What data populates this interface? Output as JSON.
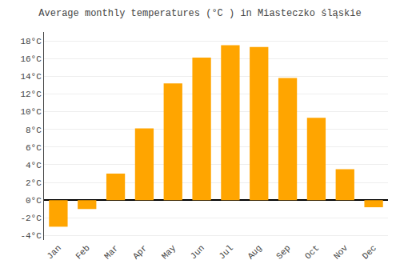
{
  "chart_data": {
    "type": "bar",
    "title": "Average monthly temperatures (°C ) in Miasteczko śląskie",
    "categories": [
      "Jan",
      "Feb",
      "Mar",
      "Apr",
      "May",
      "Jun",
      "Jul",
      "Aug",
      "Sep",
      "Oct",
      "Nov",
      "Dec"
    ],
    "values": [
      -3.0,
      -1.0,
      3.0,
      8.1,
      13.2,
      16.1,
      17.5,
      17.3,
      13.8,
      9.3,
      3.5,
      -0.8
    ],
    "color": "#FFA500",
    "ylim": [
      -4.5,
      19
    ],
    "yticks": [
      {
        "value": -4,
        "label": "-4°C"
      },
      {
        "value": -2,
        "label": "-2°C"
      },
      {
        "value": 0,
        "label": "0°C"
      },
      {
        "value": 2,
        "label": "2°C"
      },
      {
        "value": 4,
        "label": "4°C"
      },
      {
        "value": 6,
        "label": "6°C"
      },
      {
        "value": 8,
        "label": "8°C"
      },
      {
        "value": 10,
        "label": "10°C"
      },
      {
        "value": 12,
        "label": "12°C"
      },
      {
        "value": 14,
        "label": "14°C"
      },
      {
        "value": 16,
        "label": "16°C"
      },
      {
        "value": 18,
        "label": "18°C"
      }
    ],
    "grid": true
  }
}
